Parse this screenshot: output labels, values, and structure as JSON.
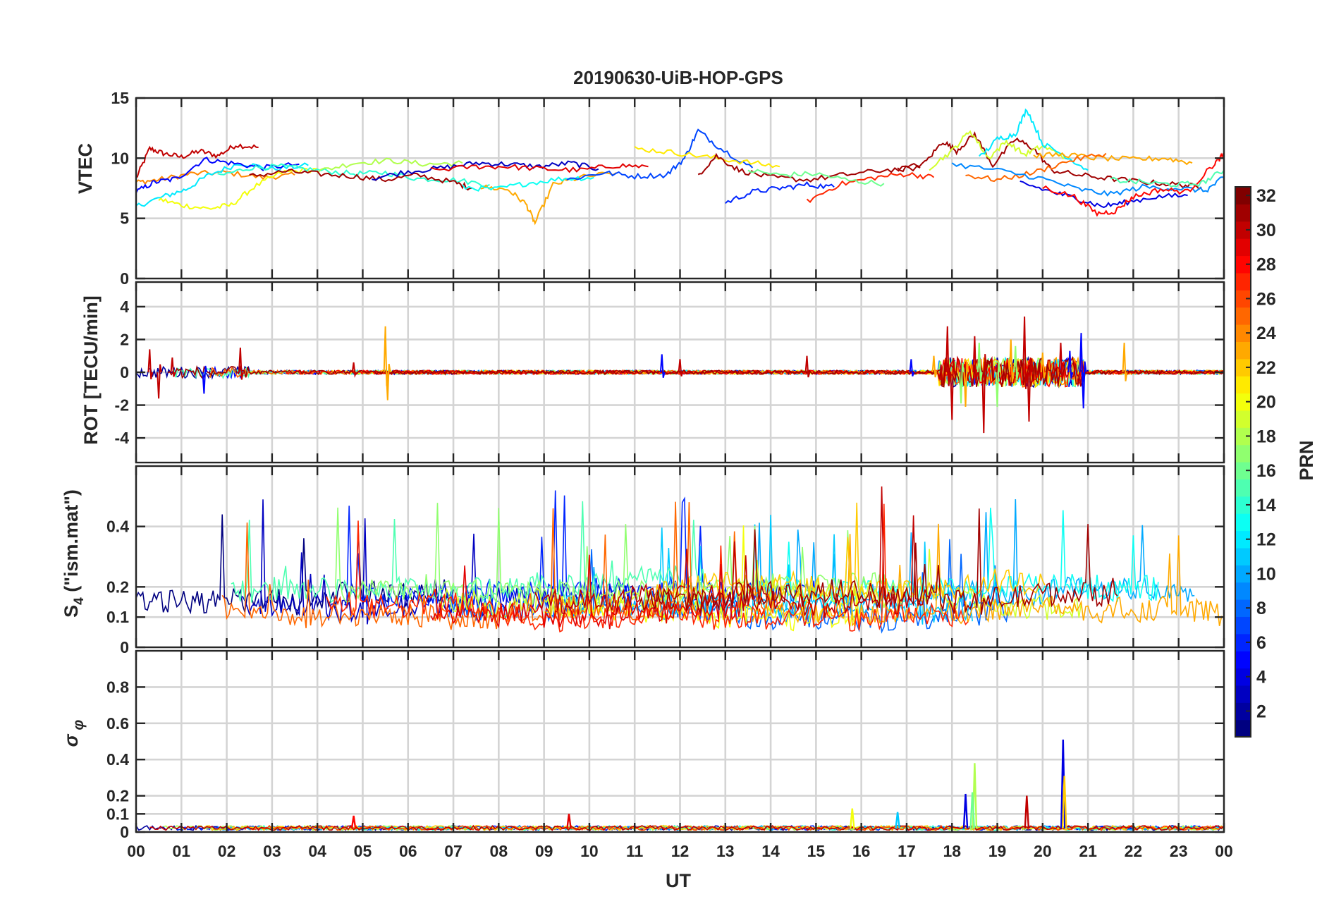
{
  "chart_data": [
    {
      "type": "line",
      "title": "20190630-UiB-HOP-GPS",
      "panel": "vtec",
      "ylabel": "VTEC",
      "ylim": [
        0,
        15
      ],
      "yticks": [
        0,
        5,
        10,
        15
      ],
      "xlim": [
        0,
        24
      ],
      "series": [
        {
          "name": "PRN 30",
          "prn": 30,
          "x": [
            0,
            0.3,
            0.6,
            1.0,
            1.4,
            1.8,
            2.2,
            2.7
          ],
          "y": [
            8.3,
            10.8,
            10.4,
            10.1,
            10.6,
            10.2,
            11.1,
            10.9
          ]
        },
        {
          "name": "PRN 24",
          "prn": 24,
          "x": [
            0,
            0.5,
            1.2,
            2.0,
            2.8,
            3.5
          ],
          "y": [
            8.0,
            8.2,
            8.7,
            8.8,
            8.4,
            8.6
          ]
        },
        {
          "name": "PRN 12",
          "prn": 12,
          "x": [
            0,
            0.6,
            1.1,
            1.6,
            2.3,
            3.0,
            3.8
          ],
          "y": [
            6.0,
            6.8,
            7.4,
            8.6,
            9.6,
            9.1,
            9.4
          ]
        },
        {
          "name": "PRN 20",
          "prn": 20,
          "x": [
            0.5,
            1.0,
            1.6,
            2.1,
            2.6,
            3.2,
            4.0
          ],
          "y": [
            6.6,
            6.1,
            5.8,
            6.1,
            7.6,
            8.8,
            9.1
          ]
        },
        {
          "name": "PRN 5",
          "prn": 5,
          "x": [
            0,
            0.4,
            0.9,
            1.5,
            2.1,
            2.8,
            3.6
          ],
          "y": [
            7.2,
            8.0,
            8.3,
            9.9,
            9.6,
            9.2,
            9.5
          ]
        },
        {
          "name": "PRN 14",
          "prn": 14,
          "x": [
            1.8,
            2.5,
            3.2,
            4.0,
            4.8,
            5.5,
            6.2,
            7.0,
            7.8
          ],
          "y": [
            8.5,
            9.2,
            9.3,
            9.0,
            8.7,
            8.8,
            8.3,
            8.2,
            7.8
          ]
        },
        {
          "name": "PRN 18",
          "prn": 18,
          "x": [
            4.0,
            4.8,
            5.6,
            6.4,
            7.2
          ],
          "y": [
            8.9,
            9.6,
            9.8,
            9.5,
            9.6
          ]
        },
        {
          "name": "PRN 31",
          "prn": 31,
          "x": [
            2.5,
            3.3,
            4.0,
            4.8,
            5.5,
            6.2,
            7.0,
            7.4
          ],
          "y": [
            8.5,
            8.9,
            8.7,
            8.5,
            8.2,
            8.6,
            8.0,
            7.5
          ]
        },
        {
          "name": "PRN 3",
          "prn": 3,
          "x": [
            5.2,
            6.0,
            6.8,
            7.5,
            8.2,
            8.9,
            9.6,
            10.2
          ],
          "y": [
            8.3,
            8.9,
            9.2,
            9.6,
            9.5,
            9.3,
            9.6,
            9.1
          ]
        },
        {
          "name": "PRN 23",
          "prn": 23,
          "x": [
            7.6,
            8.2,
            8.6,
            8.8,
            9.2,
            9.8,
            10.6
          ],
          "y": [
            7.6,
            7.4,
            6.2,
            4.6,
            7.8,
            8.4,
            8.8
          ]
        },
        {
          "name": "PRN 29",
          "prn": 29,
          "x": [
            6.5,
            7.5,
            8.2,
            9.0,
            9.8,
            10.6,
            11.3
          ],
          "y": [
            9.0,
            9.3,
            9.3,
            9.1,
            9.0,
            9.4,
            9.3
          ]
        },
        {
          "name": "PRN 13",
          "prn": 13,
          "x": [
            7.2,
            7.9,
            8.6,
            9.4,
            10.1
          ],
          "y": [
            7.6,
            7.4,
            7.9,
            8.3,
            8.4
          ]
        },
        {
          "name": "PRN 7",
          "prn": 7,
          "x": [
            9.5,
            10.3,
            11.0,
            11.7,
            12.1,
            12.4,
            12.9,
            13.6
          ],
          "y": [
            8.2,
            8.8,
            8.5,
            8.6,
            10.0,
            12.3,
            10.8,
            9.2
          ]
        },
        {
          "name": "PRN 21",
          "prn": 21,
          "x": [
            11.0,
            11.8,
            12.6,
            13.4,
            14.2
          ],
          "y": [
            10.8,
            10.5,
            10.1,
            9.7,
            9.3
          ]
        },
        {
          "name": "PRN 6",
          "prn": 6,
          "x": [
            13.0,
            13.6,
            14.2,
            14.8,
            15.4
          ],
          "y": [
            6.3,
            7.2,
            7.5,
            7.8,
            7.6
          ]
        },
        {
          "name": "PRN 31b",
          "prn": 31,
          "x": [
            12.4,
            12.8,
            13.3,
            14.0,
            14.8,
            15.6,
            16.5,
            17.3
          ],
          "y": [
            8.6,
            10.2,
            9.0,
            8.4,
            8.2,
            8.6,
            9.0,
            9.2
          ]
        },
        {
          "name": "PRN 27",
          "prn": 27,
          "x": [
            14.8,
            15.5,
            16.3,
            17.0,
            17.6
          ],
          "y": [
            6.4,
            7.8,
            8.4,
            8.7,
            8.4
          ]
        },
        {
          "name": "PRN 16",
          "prn": 16,
          "x": [
            13.5,
            14.2,
            15.0,
            15.8,
            16.5
          ],
          "y": [
            9.0,
            8.6,
            8.7,
            8.1,
            7.9
          ]
        },
        {
          "name": "PRN 31c",
          "prn": 31,
          "x": [
            16.8,
            17.4,
            17.8,
            18.1,
            18.5,
            18.9,
            19.4,
            19.8,
            20.2,
            20.8,
            21.5,
            22.3,
            23.0,
            23.5
          ],
          "y": [
            9.0,
            9.6,
            11.4,
            10.6,
            12.0,
            9.4,
            11.6,
            10.8,
            9.0,
            8.6,
            8.3,
            8.0,
            7.8,
            7.6
          ]
        },
        {
          "name": "PRN 19",
          "prn": 19,
          "x": [
            17.5,
            18.0,
            18.4,
            18.8,
            19.2,
            19.6,
            20.0,
            20.5
          ],
          "y": [
            9.2,
            10.6,
            12.3,
            10.0,
            11.4,
            10.3,
            11.0,
            10.1
          ]
        },
        {
          "name": "PRN 12b",
          "prn": 12,
          "x": [
            18.6,
            19.0,
            19.4,
            19.65,
            20.0,
            20.5,
            21.0
          ],
          "y": [
            10.0,
            11.6,
            12.0,
            14.1,
            11.2,
            10.2,
            9.0
          ]
        },
        {
          "name": "PRN 23b",
          "prn": 23,
          "x": [
            19.8,
            20.5,
            21.2,
            22.0,
            22.7,
            23.3
          ],
          "y": [
            10.2,
            10.3,
            10.0,
            9.9,
            10.0,
            9.6
          ]
        },
        {
          "name": "PRN 25",
          "prn": 25,
          "x": [
            18.3,
            19.0,
            19.8,
            20.6,
            21.4
          ],
          "y": [
            8.6,
            8.2,
            8.8,
            9.8,
            10.4
          ]
        },
        {
          "name": "PRN 9",
          "prn": 9,
          "x": [
            18.0,
            19.0,
            20.0,
            20.8,
            21.5,
            22.2,
            23.0,
            23.6,
            24.0
          ],
          "y": [
            9.5,
            9.0,
            8.3,
            7.4,
            7.0,
            7.6,
            7.5,
            7.3,
            8.4
          ]
        },
        {
          "name": "PRN 4",
          "prn": 4,
          "x": [
            19.5,
            20.2,
            20.8,
            21.3,
            21.8,
            22.5,
            23.2
          ],
          "y": [
            8.0,
            7.2,
            6.6,
            6.0,
            6.3,
            6.8,
            6.9
          ]
        },
        {
          "name": "PRN 28",
          "prn": 28,
          "x": [
            20.0,
            20.7,
            21.2,
            21.6,
            22.0,
            22.6,
            23.2,
            23.8,
            24.0
          ],
          "y": [
            7.6,
            6.8,
            5.4,
            5.6,
            6.8,
            7.4,
            7.2,
            9.6,
            10.3
          ]
        },
        {
          "name": "PRN 15",
          "prn": 15,
          "x": [
            21.5,
            22.2,
            22.9,
            23.5,
            24.0
          ],
          "y": [
            8.2,
            8.0,
            7.8,
            7.9,
            9.0
          ]
        }
      ]
    },
    {
      "type": "line",
      "panel": "rot",
      "ylabel": "ROT [TECU/min]",
      "ylim": [
        -5.5,
        5.5
      ],
      "yticks": [
        -4,
        -2,
        0,
        2,
        4
      ],
      "xlim": [
        0,
        24
      ],
      "series": [
        {
          "name": "PRN 30 spikes",
          "prn": 30,
          "x": [
            0.3,
            0.5,
            0.8,
            2.3,
            4.8,
            12.0,
            14.8,
            17.9,
            18.0,
            18.5,
            18.7,
            19.6,
            19.7,
            20.4
          ],
          "y": [
            1.4,
            -1.6,
            0.9,
            1.5,
            0.6,
            0.8,
            1.0,
            2.8,
            -2.9,
            2.2,
            -3.7,
            3.4,
            -3.0,
            1.8
          ]
        },
        {
          "name": "PRN 23 spikes",
          "prn": 23,
          "x": [
            5.5,
            5.55,
            17.6,
            18.3,
            19.3,
            20.0,
            21.8
          ],
          "y": [
            2.8,
            -1.7,
            1.0,
            -2.1,
            2.0,
            1.2,
            1.8
          ]
        },
        {
          "name": "PRN 5 spikes",
          "prn": 5,
          "x": [
            1.5,
            11.6,
            17.1,
            20.6,
            20.85,
            20.9
          ],
          "y": [
            -1.3,
            1.1,
            0.8,
            1.3,
            2.4,
            -2.2
          ]
        },
        {
          "name": "PRN 17 spikes",
          "prn": 17,
          "x": [
            18.2,
            18.6,
            19.0,
            19.4
          ],
          "y": [
            -1.9,
            1.8,
            -2.1,
            1.6
          ]
        }
      ]
    },
    {
      "type": "line",
      "panel": "s4",
      "ylabel": "S4 (\"ism.mat\")",
      "ylabel_main": "S",
      "ylabel_sub": "4",
      "ylabel_rest": " (\"ism.mat\")",
      "ylim": [
        0,
        0.6
      ],
      "yticks": [
        0,
        0.1,
        0.2,
        0.4
      ],
      "ytick_labels": [
        "0",
        "0.1",
        "0.2",
        "0.4"
      ],
      "xlim": [
        0,
        24
      ],
      "note": "S4 traces for all PRNs, values mostly 0.05-0.25 with spikes up to 0.6"
    },
    {
      "type": "line",
      "panel": "sigma_phi",
      "ylabel": "σ φ",
      "ylabel_main": "σ",
      "ylabel_sub": "φ",
      "ylim": [
        0,
        1
      ],
      "yticks": [
        0,
        0.1,
        0.2,
        0.4,
        0.6,
        0.8
      ],
      "ytick_labels": [
        "0",
        "0.1",
        "0.2",
        "0.4",
        "0.6",
        "0.8"
      ],
      "xlim": [
        0,
        24
      ],
      "xlabel": "UT",
      "xticks": [
        0,
        1,
        2,
        3,
        4,
        5,
        6,
        7,
        8,
        9,
        10,
        11,
        12,
        13,
        14,
        15,
        16,
        17,
        18,
        19,
        20,
        21,
        22,
        23,
        24
      ],
      "xtick_labels": [
        "00",
        "01",
        "02",
        "03",
        "04",
        "05",
        "06",
        "07",
        "08",
        "09",
        "10",
        "11",
        "12",
        "13",
        "14",
        "15",
        "16",
        "17",
        "18",
        "19",
        "20",
        "21",
        "22",
        "23",
        "00"
      ],
      "spikes": [
        {
          "prn": 4,
          "x": 20.45,
          "y": 0.51
        },
        {
          "prn": 22,
          "x": 20.48,
          "y": 0.31
        },
        {
          "prn": 18,
          "x": 18.5,
          "y": 0.38
        },
        {
          "prn": 4,
          "x": 18.3,
          "y": 0.21
        },
        {
          "prn": 30,
          "x": 19.65,
          "y": 0.2
        },
        {
          "prn": 16,
          "x": 18.45,
          "y": 0.22
        },
        {
          "prn": 20,
          "x": 15.8,
          "y": 0.13
        },
        {
          "prn": 11,
          "x": 16.8,
          "y": 0.11
        },
        {
          "prn": 28,
          "x": 4.8,
          "y": 0.09
        },
        {
          "prn": 29,
          "x": 9.55,
          "y": 0.1
        }
      ]
    }
  ],
  "colorbar": {
    "label": "PRN",
    "min": 1,
    "max": 32,
    "ticks": [
      2,
      4,
      6,
      8,
      10,
      12,
      14,
      16,
      18,
      20,
      22,
      24,
      26,
      28,
      30,
      32
    ],
    "colormap": "jet"
  }
}
